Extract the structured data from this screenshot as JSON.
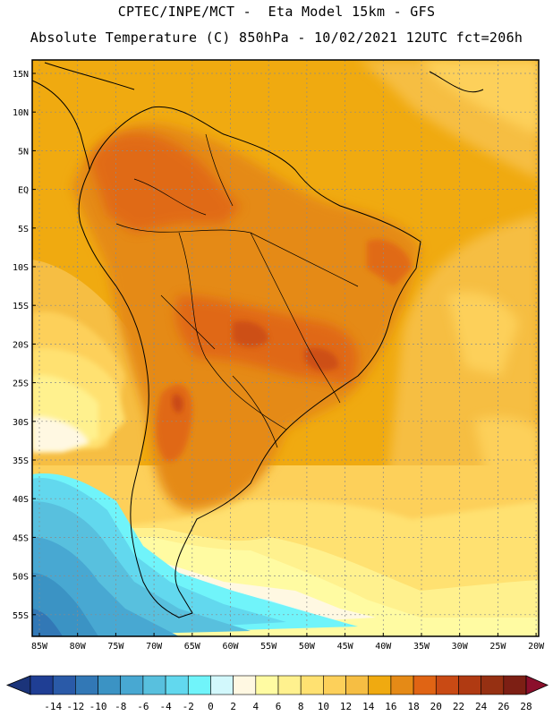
{
  "header": {
    "line1": "CPTEC/INPE/MCT -  Eta Model 15km - GFS",
    "line2": "Absolute Temperature (C) 850hPa - 10/02/2021 12UTC fct=206h"
  },
  "map": {
    "lat_labels": [
      "15N",
      "10N",
      "5N",
      "EQ",
      "5S",
      "10S",
      "15S",
      "20S",
      "25S",
      "30S",
      "35S",
      "40S",
      "45S",
      "50S",
      "55S"
    ],
    "lon_labels": [
      "85W",
      "80W",
      "75W",
      "70W",
      "65W",
      "60W",
      "55W",
      "50W",
      "45W",
      "40W",
      "35W",
      "30W",
      "25W",
      "20W"
    ]
  },
  "colorbar": {
    "colors": [
      "#1f3e94",
      "#2a5aa8",
      "#3278b6",
      "#3b93c4",
      "#48a8d2",
      "#58c0de",
      "#62d8ee",
      "#70f4fa",
      "#d2f8fc",
      "#fff8e2",
      "#fffba2",
      "#fff18e",
      "#ffe171",
      "#fdd05a",
      "#f6be43",
      "#f0aa10",
      "#e58a16",
      "#e06414",
      "#c94a14",
      "#b03a12",
      "#963012",
      "#7d1f14"
    ],
    "end_left": "#1b347a",
    "end_right": "#8b0f2c",
    "labels": [
      "-14",
      "-12",
      "-10",
      "-8",
      "-6",
      "-4",
      "-2",
      "0",
      "2",
      "4",
      "6",
      "8",
      "10",
      "12",
      "14",
      "16",
      "18",
      "20",
      "22",
      "24",
      "26",
      "28"
    ]
  }
}
